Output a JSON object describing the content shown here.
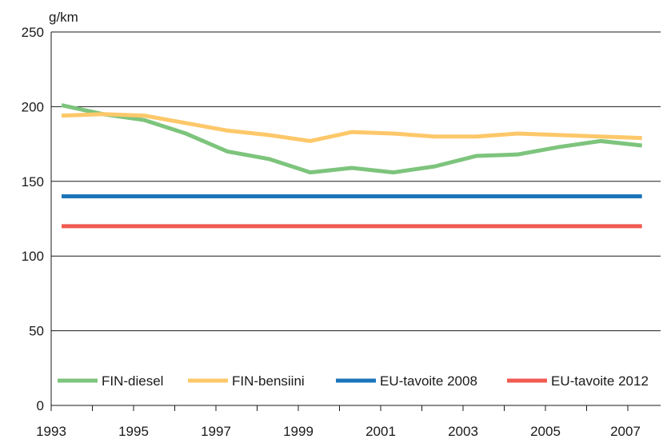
{
  "chart_data": {
    "type": "line",
    "title": "",
    "xlabel": "",
    "ylabel": "g/km",
    "ylim": [
      0,
      250
    ],
    "yticks": [
      0,
      50,
      100,
      150,
      200,
      250
    ],
    "xticks": [
      1993,
      1995,
      1997,
      1999,
      2001,
      2003,
      2005,
      2007
    ],
    "grid": "horizontal",
    "legend_position": "bottom",
    "series": [
      {
        "name": "FIN-diesel",
        "color": "#7dc47d",
        "x": [
          1993,
          1994,
          1995,
          1996,
          1997,
          1998,
          1999,
          2000,
          2001,
          2002,
          2003,
          2004,
          2005,
          2006,
          2007
        ],
        "values": [
          201,
          195,
          191,
          182,
          170,
          165,
          156,
          159,
          156,
          160,
          167,
          168,
          173,
          177,
          174
        ]
      },
      {
        "name": "FIN-bensiini",
        "color": "#fdc86a",
        "x": [
          1993,
          1994,
          1995,
          1996,
          1997,
          1998,
          1999,
          2000,
          2001,
          2002,
          2003,
          2004,
          2005,
          2006,
          2007
        ],
        "values": [
          194,
          195,
          194,
          189,
          184,
          181,
          177,
          183,
          182,
          180,
          180,
          182,
          181,
          180,
          179
        ]
      },
      {
        "name": "EU-tavoite 2008",
        "color": "#1b75bb",
        "x": [
          1993,
          2007
        ],
        "values": [
          140,
          140
        ]
      },
      {
        "name": "EU-tavoite 2012",
        "color": "#f15a50",
        "x": [
          1993,
          2007
        ],
        "values": [
          120,
          120
        ]
      }
    ]
  }
}
